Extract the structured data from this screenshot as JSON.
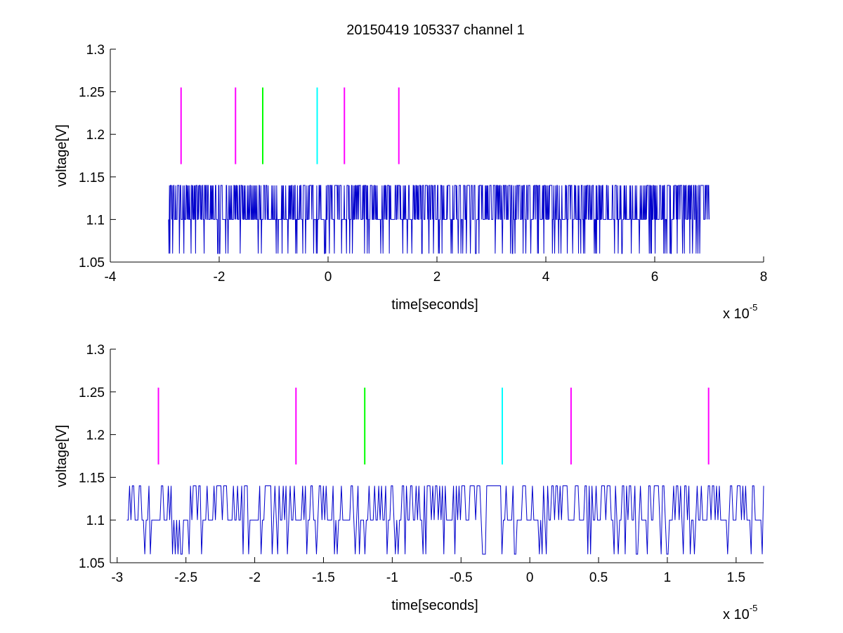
{
  "figure": {
    "title": "20150419 105337 channel 1"
  },
  "colors": {
    "signal": "#0000cc",
    "magenta": "#ff00ff",
    "green": "#00ff00",
    "cyan": "#00ffff"
  },
  "chart_data": [
    {
      "type": "line",
      "title": "20150419 105337 channel 1",
      "xlabel": "time[seconds]",
      "ylabel": "voltage[V]",
      "x_multiplier_base": "x 10",
      "x_multiplier_exp": "-5",
      "xlim": [
        -4,
        8
      ],
      "ylim": [
        1.05,
        1.3
      ],
      "x_ticks": [
        -4,
        -2,
        0,
        2,
        4,
        6,
        8
      ],
      "x_tick_labels": [
        "-4",
        "-2",
        "0",
        "2",
        "4",
        "6",
        "8"
      ],
      "y_ticks": [
        1.05,
        1.1,
        1.15,
        1.2,
        1.25,
        1.3
      ],
      "y_tick_labels": [
        "1.05",
        "1.1",
        "1.15",
        "1.2",
        "1.25",
        "1.3"
      ],
      "grid": false,
      "signal": {
        "x_range": [
          -2.93,
          7.0
        ],
        "baseline": 1.1,
        "levels": [
          1.06,
          1.1,
          1.14
        ],
        "samples": 1200
      },
      "markers": [
        {
          "x": -2.7,
          "y_range": [
            1.165,
            1.255
          ],
          "color": "magenta"
        },
        {
          "x": -1.7,
          "y_range": [
            1.165,
            1.255
          ],
          "color": "magenta"
        },
        {
          "x": -1.2,
          "y_range": [
            1.165,
            1.255
          ],
          "color": "green"
        },
        {
          "x": -0.2,
          "y_range": [
            1.165,
            1.255
          ],
          "color": "cyan"
        },
        {
          "x": 0.3,
          "y_range": [
            1.165,
            1.255
          ],
          "color": "magenta"
        },
        {
          "x": 1.3,
          "y_range": [
            1.165,
            1.255
          ],
          "color": "magenta"
        }
      ]
    },
    {
      "type": "line",
      "title": "",
      "xlabel": "time[seconds]",
      "ylabel": "voltage[V]",
      "x_multiplier_base": "x 10",
      "x_multiplier_exp": "-5",
      "xlim": [
        -3.05,
        1.7
      ],
      "ylim": [
        1.05,
        1.3
      ],
      "x_ticks": [
        -3,
        -2.5,
        -2,
        -1.5,
        -1,
        -0.5,
        0,
        0.5,
        1,
        1.5
      ],
      "x_tick_labels": [
        "-3",
        "-2.5",
        "-2",
        "-1.5",
        "-1",
        "-0.5",
        "0",
        "0.5",
        "1",
        "1.5"
      ],
      "y_ticks": [
        1.05,
        1.1,
        1.15,
        1.2,
        1.25,
        1.3
      ],
      "y_tick_labels": [
        "1.05",
        "1.1",
        "1.15",
        "1.2",
        "1.25",
        "1.3"
      ],
      "grid": false,
      "signal": {
        "x_range": [
          -2.93,
          1.7
        ],
        "baseline": 1.1,
        "levels": [
          1.06,
          1.1,
          1.14
        ],
        "samples": 460
      },
      "markers": [
        {
          "x": -2.7,
          "y_range": [
            1.165,
            1.255
          ],
          "color": "magenta"
        },
        {
          "x": -1.7,
          "y_range": [
            1.165,
            1.255
          ],
          "color": "magenta"
        },
        {
          "x": -1.2,
          "y_range": [
            1.165,
            1.255
          ],
          "color": "green"
        },
        {
          "x": -0.2,
          "y_range": [
            1.165,
            1.255
          ],
          "color": "cyan"
        },
        {
          "x": 0.3,
          "y_range": [
            1.165,
            1.255
          ],
          "color": "magenta"
        },
        {
          "x": 1.3,
          "y_range": [
            1.165,
            1.255
          ],
          "color": "magenta"
        }
      ]
    }
  ]
}
